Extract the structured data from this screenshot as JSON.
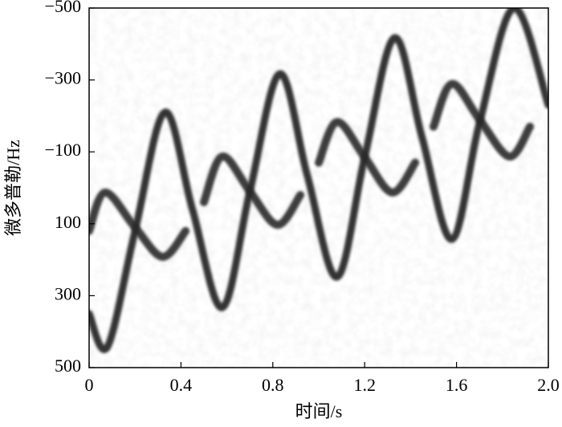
{
  "chart_data": {
    "type": "line",
    "xlabel": "时间/s",
    "ylabel": "微多普勒/Hz",
    "xlim": [
      0,
      {
        "value": 2,
        "label": "2.0"
      }
    ],
    "xticks": [
      0,
      0.4,
      0.8,
      1.2,
      1.6,
      {
        "value": 2,
        "label": "2.0"
      }
    ],
    "ylim": [
      500,
      -500
    ],
    "yticks": [
      {
        "value": -500,
        "label": "−500"
      },
      {
        "value": -300,
        "label": "−300"
      },
      {
        "value": -100,
        "label": "−100"
      },
      100,
      300,
      500
    ],
    "series": [
      {
        "color": "#1e1e1e",
        "x": [
          0,
          0.08,
          0.2,
          0.33,
          0.45,
          0.58,
          0.7,
          0.83,
          0.95,
          1.08,
          1.2,
          1.33,
          1.45,
          1.58,
          1.7,
          1.85,
          2.0
        ],
        "values": [
          350,
          442,
          120,
          -210,
          60,
          333,
          10,
          -317,
          -35,
          248,
          -85,
          -417,
          -140,
          143,
          -180,
          -500,
          -230
        ]
      },
      {
        "color": "#2a2a2a",
        "x": [
          0,
          0.07,
          0.2,
          0.32,
          0.42
        ],
        "values": [
          120,
          13,
          110,
          192,
          120
        ]
      },
      {
        "color": "#2a2a2a",
        "x": [
          0.5,
          0.58,
          0.7,
          0.82,
          0.92
        ],
        "values": [
          40,
          -87,
          10,
          103,
          20
        ]
      },
      {
        "color": "#2a2a2a",
        "x": [
          1.0,
          1.08,
          1.2,
          1.32,
          1.42
        ],
        "values": [
          -70,
          -183,
          -85,
          13,
          -70
        ]
      },
      {
        "color": "#2a2a2a",
        "x": [
          1.5,
          1.58,
          1.7,
          1.83,
          1.92
        ],
        "values": [
          -170,
          -289,
          -190,
          -87,
          -170
        ]
      }
    ]
  }
}
